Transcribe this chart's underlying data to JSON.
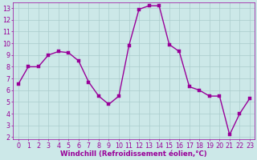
{
  "x": [
    0,
    1,
    2,
    3,
    4,
    5,
    6,
    7,
    8,
    9,
    10,
    11,
    12,
    13,
    14,
    15,
    16,
    17,
    18,
    19,
    20,
    21,
    22,
    23
  ],
  "y": [
    6.5,
    8.0,
    8.0,
    9.0,
    9.3,
    9.2,
    8.5,
    6.7,
    5.5,
    4.8,
    5.5,
    9.8,
    12.9,
    13.2,
    13.2,
    9.9,
    9.3,
    6.3,
    6.0,
    5.5,
    5.5,
    2.2,
    4.0,
    5.3
  ],
  "line_color": "#990099",
  "marker_color": "#990099",
  "bg_color": "#cce8e8",
  "grid_color": "#aacccc",
  "xlabel": "Windchill (Refroidissement éolien,°C)",
  "xlim": [
    -0.5,
    23.5
  ],
  "ylim": [
    1.8,
    13.5
  ],
  "yticks": [
    2,
    3,
    4,
    5,
    6,
    7,
    8,
    9,
    10,
    11,
    12,
    13
  ],
  "xticks": [
    0,
    1,
    2,
    3,
    4,
    5,
    6,
    7,
    8,
    9,
    10,
    11,
    12,
    13,
    14,
    15,
    16,
    17,
    18,
    19,
    20,
    21,
    22,
    23
  ],
  "tick_color": "#990099",
  "label_color": "#990099",
  "font_size": 5.8,
  "xlabel_size": 6.2,
  "marker_size": 2.5,
  "line_width": 1.0
}
